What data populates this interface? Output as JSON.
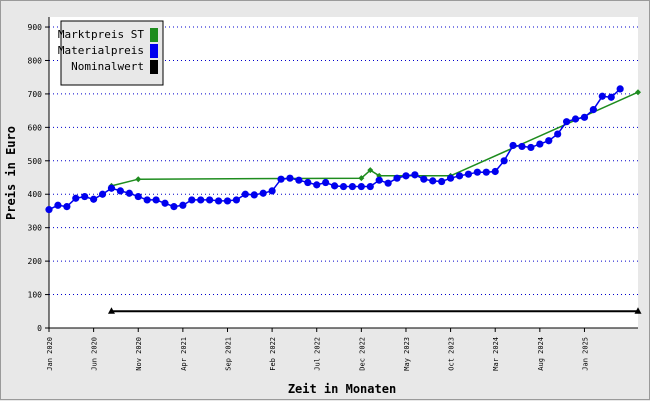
{
  "chart_data": {
    "type": "line",
    "xlabel": "Zeit in Monaten",
    "ylabel": "Preis in Euro",
    "ylim": [
      0,
      930
    ],
    "yticks": [
      0,
      100,
      200,
      300,
      400,
      500,
      600,
      700,
      800,
      900
    ],
    "xlim": [
      "2020-01",
      "2025-07"
    ],
    "xticks": [
      {
        "date": "2020-01",
        "label": "Jan 2020"
      },
      {
        "date": "2020-06",
        "label": "Jun 2020"
      },
      {
        "date": "2020-11",
        "label": "Nov 2020"
      },
      {
        "date": "2021-04",
        "label": "Apr 2021"
      },
      {
        "date": "2021-09",
        "label": "Sep 2021"
      },
      {
        "date": "2022-02",
        "label": "Feb 2022"
      },
      {
        "date": "2022-07",
        "label": "Jul 2022"
      },
      {
        "date": "2022-12",
        "label": "Dec 2022"
      },
      {
        "date": "2023-05",
        "label": "May 2023"
      },
      {
        "date": "2023-10",
        "label": "Oct 2023"
      },
      {
        "date": "2024-03",
        "label": "Mar 2024"
      },
      {
        "date": "2024-08",
        "label": "Aug 2024"
      },
      {
        "date": "2025-01",
        "label": "Jan 2025"
      }
    ],
    "grid": {
      "horizontal": true,
      "vertical": false,
      "style": "dotted",
      "color": "#0000cc"
    },
    "legend_position": "top-left",
    "series": [
      {
        "name": "Marktpreis ST",
        "color": "#1e8c1e",
        "marker": "diamond",
        "points": [
          {
            "x": "2020-08",
            "y": 425
          },
          {
            "x": "2020-11",
            "y": 445
          },
          {
            "x": "2022-12",
            "y": 448
          },
          {
            "x": "2023-01",
            "y": 472
          },
          {
            "x": "2023-02",
            "y": 455
          },
          {
            "x": "2023-10",
            "y": 455
          },
          {
            "x": "2025-07",
            "y": 705
          }
        ]
      },
      {
        "name": "Materialpreis",
        "color": "#0000ee",
        "marker": "circle",
        "points": [
          {
            "x": "2020-01",
            "y": 354
          },
          {
            "x": "2020-02",
            "y": 367
          },
          {
            "x": "2020-03",
            "y": 363
          },
          {
            "x": "2020-04",
            "y": 388
          },
          {
            "x": "2020-05",
            "y": 393
          },
          {
            "x": "2020-06",
            "y": 385
          },
          {
            "x": "2020-07",
            "y": 400
          },
          {
            "x": "2020-08",
            "y": 418
          },
          {
            "x": "2020-09",
            "y": 410
          },
          {
            "x": "2020-10",
            "y": 403
          },
          {
            "x": "2020-11",
            "y": 393
          },
          {
            "x": "2020-12",
            "y": 383
          },
          {
            "x": "2021-01",
            "y": 383
          },
          {
            "x": "2021-02",
            "y": 373
          },
          {
            "x": "2021-03",
            "y": 363
          },
          {
            "x": "2021-04",
            "y": 367
          },
          {
            "x": "2021-05",
            "y": 383
          },
          {
            "x": "2021-06",
            "y": 383
          },
          {
            "x": "2021-07",
            "y": 383
          },
          {
            "x": "2021-08",
            "y": 380
          },
          {
            "x": "2021-09",
            "y": 380
          },
          {
            "x": "2021-10",
            "y": 383
          },
          {
            "x": "2021-11",
            "y": 400
          },
          {
            "x": "2021-12",
            "y": 398
          },
          {
            "x": "2022-01",
            "y": 403
          },
          {
            "x": "2022-02",
            "y": 410
          },
          {
            "x": "2022-03",
            "y": 445
          },
          {
            "x": "2022-04",
            "y": 448
          },
          {
            "x": "2022-05",
            "y": 442
          },
          {
            "x": "2022-06",
            "y": 435
          },
          {
            "x": "2022-07",
            "y": 428
          },
          {
            "x": "2022-08",
            "y": 435
          },
          {
            "x": "2022-09",
            "y": 425
          },
          {
            "x": "2022-10",
            "y": 423
          },
          {
            "x": "2022-11",
            "y": 423
          },
          {
            "x": "2022-12",
            "y": 423
          },
          {
            "x": "2023-01",
            "y": 423
          },
          {
            "x": "2023-02",
            "y": 442
          },
          {
            "x": "2023-03",
            "y": 433
          },
          {
            "x": "2023-04",
            "y": 448
          },
          {
            "x": "2023-05",
            "y": 455
          },
          {
            "x": "2023-06",
            "y": 458
          },
          {
            "x": "2023-07",
            "y": 445
          },
          {
            "x": "2023-08",
            "y": 440
          },
          {
            "x": "2023-09",
            "y": 438
          },
          {
            "x": "2023-10",
            "y": 448
          },
          {
            "x": "2023-11",
            "y": 455
          },
          {
            "x": "2023-12",
            "y": 460
          },
          {
            "x": "2024-01",
            "y": 466
          },
          {
            "x": "2024-02",
            "y": 466
          },
          {
            "x": "2024-03",
            "y": 468
          },
          {
            "x": "2024-04",
            "y": 500
          },
          {
            "x": "2024-05",
            "y": 546
          },
          {
            "x": "2024-06",
            "y": 543
          },
          {
            "x": "2024-07",
            "y": 540
          },
          {
            "x": "2024-08",
            "y": 550
          },
          {
            "x": "2024-09",
            "y": 560
          },
          {
            "x": "2024-10",
            "y": 580
          },
          {
            "x": "2024-11",
            "y": 617
          },
          {
            "x": "2024-12",
            "y": 625
          },
          {
            "x": "2025-01",
            "y": 630
          },
          {
            "x": "2025-02",
            "y": 653
          },
          {
            "x": "2025-03",
            "y": 693
          },
          {
            "x": "2025-04",
            "y": 690
          },
          {
            "x": "2025-05",
            "y": 715
          }
        ]
      },
      {
        "name": "Nominalwert",
        "color": "#000000",
        "marker": "triangle",
        "points": [
          {
            "x": "2020-08",
            "y": 50
          },
          {
            "x": "2025-07",
            "y": 50
          }
        ]
      }
    ]
  }
}
